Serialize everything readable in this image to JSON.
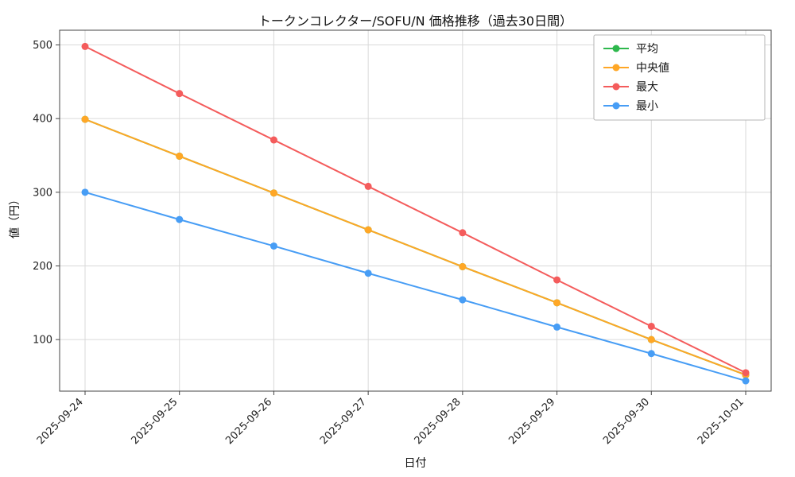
{
  "chart_data": {
    "type": "line",
    "title": "トークンコレクター/SOFU/N 価格推移（過去30日間）",
    "xlabel": "日付",
    "ylabel": "値（円）",
    "categories": [
      "2025-09-24",
      "2025-09-25",
      "2025-09-26",
      "2025-09-27",
      "2025-09-28",
      "2025-09-29",
      "2025-09-30",
      "2025-10-01"
    ],
    "series": [
      {
        "key": "mean",
        "name": "平均",
        "color": "#2eb84d",
        "values": [
          399,
          349,
          299,
          249,
          199,
          150,
          100,
          52
        ]
      },
      {
        "key": "median",
        "name": "中央値",
        "color": "#ffa726",
        "values": [
          399,
          349,
          299,
          249,
          199,
          150,
          100,
          52
        ]
      },
      {
        "key": "max",
        "name": "最大",
        "color": "#f45c5c",
        "values": [
          498,
          434,
          371,
          308,
          245,
          181,
          118,
          55
        ]
      },
      {
        "key": "min",
        "name": "最小",
        "color": "#479df5",
        "values": [
          300,
          263,
          227,
          190,
          154,
          117,
          81,
          44
        ]
      }
    ],
    "ylim": [
      30,
      520
    ],
    "yticks": [
      100,
      200,
      300,
      400,
      500
    ],
    "grid": true,
    "legend_position": "top-right",
    "marker": "circle"
  }
}
